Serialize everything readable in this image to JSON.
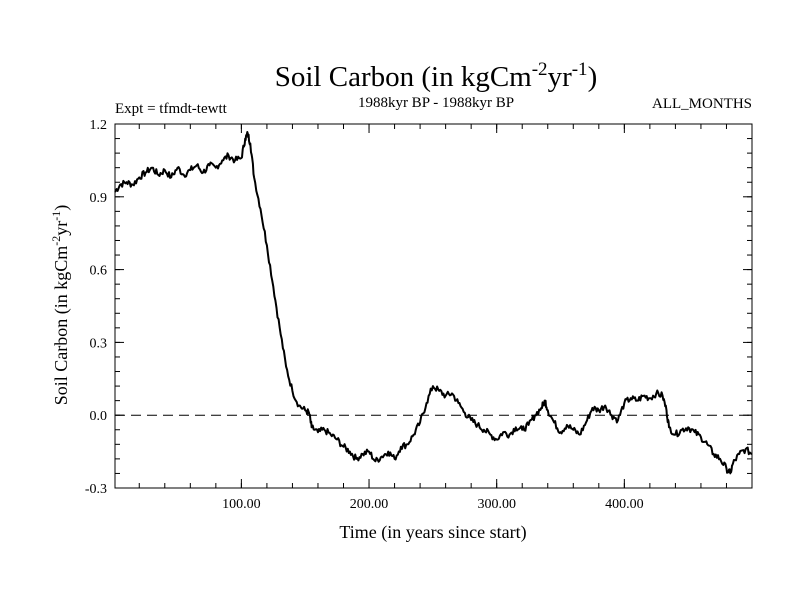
{
  "chart_data": {
    "type": "line",
    "title": {
      "main": "Soil Carbon (in kgCm",
      "exp1": "-2",
      "mid": "yr",
      "exp2": "-1",
      "end": ")"
    },
    "subtitle": "1988kyr BP - 1988kyr BP",
    "experiment": "Expt = tfmdt-tewtt",
    "season": "ALL_MONTHS",
    "xlabel": "Time (in years since start)",
    "ylabel": {
      "main": "Soil Carbon (in kgCm",
      "exp1": "-2",
      "mid": "yr",
      "exp2": "-1",
      "end": ")"
    },
    "xlim": [
      1,
      500
    ],
    "ylim": [
      -0.3,
      1.2
    ],
    "x_ticks": [
      {
        "value": 100,
        "label": "100.00"
      },
      {
        "value": 200,
        "label": "200.00"
      },
      {
        "value": 300,
        "label": "300.00"
      },
      {
        "value": 400,
        "label": "400.00"
      }
    ],
    "y_ticks": [
      {
        "value": 1.2,
        "label": "1.2"
      },
      {
        "value": 0.9,
        "label": "0.9"
      },
      {
        "value": 0.6,
        "label": "0.6"
      },
      {
        "value": 0.3,
        "label": "0.3"
      },
      {
        "value": 0.0,
        "label": "0.0"
      },
      {
        "value": -0.3,
        "label": "-0.3"
      }
    ],
    "reference_line": {
      "y": 0.0,
      "style": "dashed"
    },
    "series": [
      {
        "name": "Soil Carbon",
        "color": "#000000",
        "points": [
          [
            1,
            0.92
          ],
          [
            5,
            0.95
          ],
          [
            10,
            0.96
          ],
          [
            15,
            0.95
          ],
          [
            20,
            0.98
          ],
          [
            25,
            1.0
          ],
          [
            30,
            1.02
          ],
          [
            35,
            0.99
          ],
          [
            40,
            1.01
          ],
          [
            45,
            0.98
          ],
          [
            50,
            1.02
          ],
          [
            55,
            0.99
          ],
          [
            60,
            1.01
          ],
          [
            65,
            1.03
          ],
          [
            70,
            1.0
          ],
          [
            75,
            1.03
          ],
          [
            80,
            1.02
          ],
          [
            85,
            1.05
          ],
          [
            90,
            1.07
          ],
          [
            95,
            1.05
          ],
          [
            100,
            1.06
          ],
          [
            103,
            1.14
          ],
          [
            105,
            1.16
          ],
          [
            107,
            1.12
          ],
          [
            110,
            0.98
          ],
          [
            115,
            0.85
          ],
          [
            120,
            0.7
          ],
          [
            125,
            0.53
          ],
          [
            130,
            0.36
          ],
          [
            135,
            0.2
          ],
          [
            140,
            0.1
          ],
          [
            145,
            0.04
          ],
          [
            150,
            0.02
          ],
          [
            153,
            0.01
          ],
          [
            155,
            -0.05
          ],
          [
            160,
            -0.07
          ],
          [
            165,
            -0.06
          ],
          [
            170,
            -0.08
          ],
          [
            175,
            -0.1
          ],
          [
            180,
            -0.13
          ],
          [
            185,
            -0.15
          ],
          [
            190,
            -0.18
          ],
          [
            195,
            -0.16
          ],
          [
            200,
            -0.15
          ],
          [
            205,
            -0.19
          ],
          [
            210,
            -0.17
          ],
          [
            215,
            -0.15
          ],
          [
            220,
            -0.18
          ],
          [
            225,
            -0.13
          ],
          [
            230,
            -0.12
          ],
          [
            235,
            -0.08
          ],
          [
            240,
            -0.03
          ],
          [
            245,
            0.05
          ],
          [
            250,
            0.12
          ],
          [
            255,
            0.1
          ],
          [
            260,
            0.08
          ],
          [
            265,
            0.09
          ],
          [
            270,
            0.05
          ],
          [
            275,
            0.01
          ],
          [
            280,
            -0.02
          ],
          [
            285,
            -0.04
          ],
          [
            290,
            -0.06
          ],
          [
            295,
            -0.08
          ],
          [
            300,
            -0.1
          ],
          [
            305,
            -0.07
          ],
          [
            310,
            -0.08
          ],
          [
            315,
            -0.05
          ],
          [
            320,
            -0.06
          ],
          [
            325,
            -0.04
          ],
          [
            330,
            0.0
          ],
          [
            335,
            0.03
          ],
          [
            338,
            0.06
          ],
          [
            340,
            0.02
          ],
          [
            345,
            -0.03
          ],
          [
            350,
            -0.07
          ],
          [
            355,
            -0.04
          ],
          [
            360,
            -0.06
          ],
          [
            365,
            -0.08
          ],
          [
            370,
            -0.03
          ],
          [
            375,
            0.03
          ],
          [
            380,
            0.02
          ],
          [
            385,
            0.04
          ],
          [
            390,
            0.0
          ],
          [
            395,
            -0.02
          ],
          [
            400,
            0.05
          ],
          [
            405,
            0.07
          ],
          [
            410,
            0.06
          ],
          [
            415,
            0.08
          ],
          [
            420,
            0.07
          ],
          [
            425,
            0.09
          ],
          [
            430,
            0.08
          ],
          [
            433,
            0.02
          ],
          [
            435,
            -0.05
          ],
          [
            440,
            -0.08
          ],
          [
            445,
            -0.06
          ],
          [
            450,
            -0.05
          ],
          [
            455,
            -0.07
          ],
          [
            460,
            -0.09
          ],
          [
            465,
            -0.12
          ],
          [
            470,
            -0.16
          ],
          [
            475,
            -0.18
          ],
          [
            480,
            -0.22
          ],
          [
            483,
            -0.24
          ],
          [
            485,
            -0.2
          ],
          [
            490,
            -0.16
          ],
          [
            495,
            -0.14
          ],
          [
            500,
            -0.16
          ]
        ]
      }
    ]
  }
}
